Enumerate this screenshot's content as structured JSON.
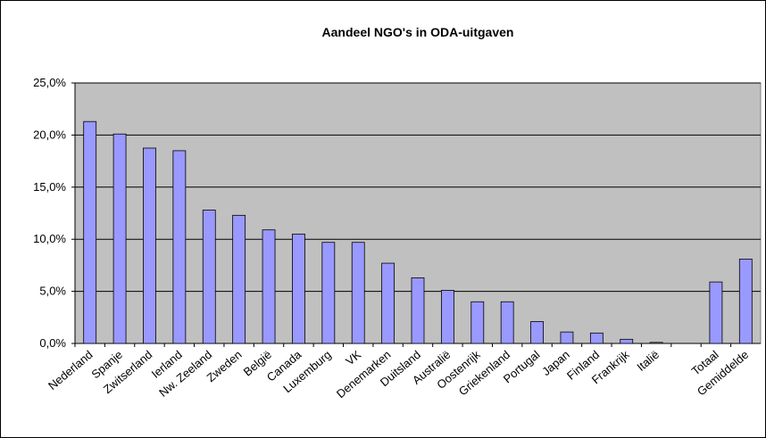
{
  "chart_data": {
    "type": "bar",
    "title": "Aandeel NGO's in ODA-uitgaven",
    "categories": [
      "Nederland",
      "Spanje",
      "Zwitserland",
      "Ierland",
      "Nw. Zeeland",
      "Zweden",
      "België",
      "Canada",
      "Luxemburg",
      "VK",
      "Denemarken",
      "Duitsland",
      "Australië",
      "Oostenrijk",
      "Griekenland",
      "Portugal",
      "Japan",
      "Finland",
      "Frankrijk",
      "Italië",
      null,
      "Totaal",
      "Gemiddelde"
    ],
    "values": [
      21.3,
      20.1,
      18.75,
      18.5,
      12.8,
      12.3,
      10.9,
      10.5,
      9.7,
      9.7,
      7.7,
      6.3,
      5.1,
      4.0,
      4.0,
      2.1,
      1.1,
      1.0,
      0.4,
      0.1,
      null,
      5.9,
      8.1
    ],
    "color": "#9999ff",
    "ylim": [
      0,
      25
    ],
    "yticks": [
      {
        "value": 0,
        "label": "0,0%"
      },
      {
        "value": 5,
        "label": "5,0%"
      },
      {
        "value": 10,
        "label": "10,0%"
      },
      {
        "value": 15,
        "label": "15,0%"
      },
      {
        "value": 20,
        "label": "20,0%"
      },
      {
        "value": 25,
        "label": "25,0%"
      }
    ],
    "grid": true
  }
}
